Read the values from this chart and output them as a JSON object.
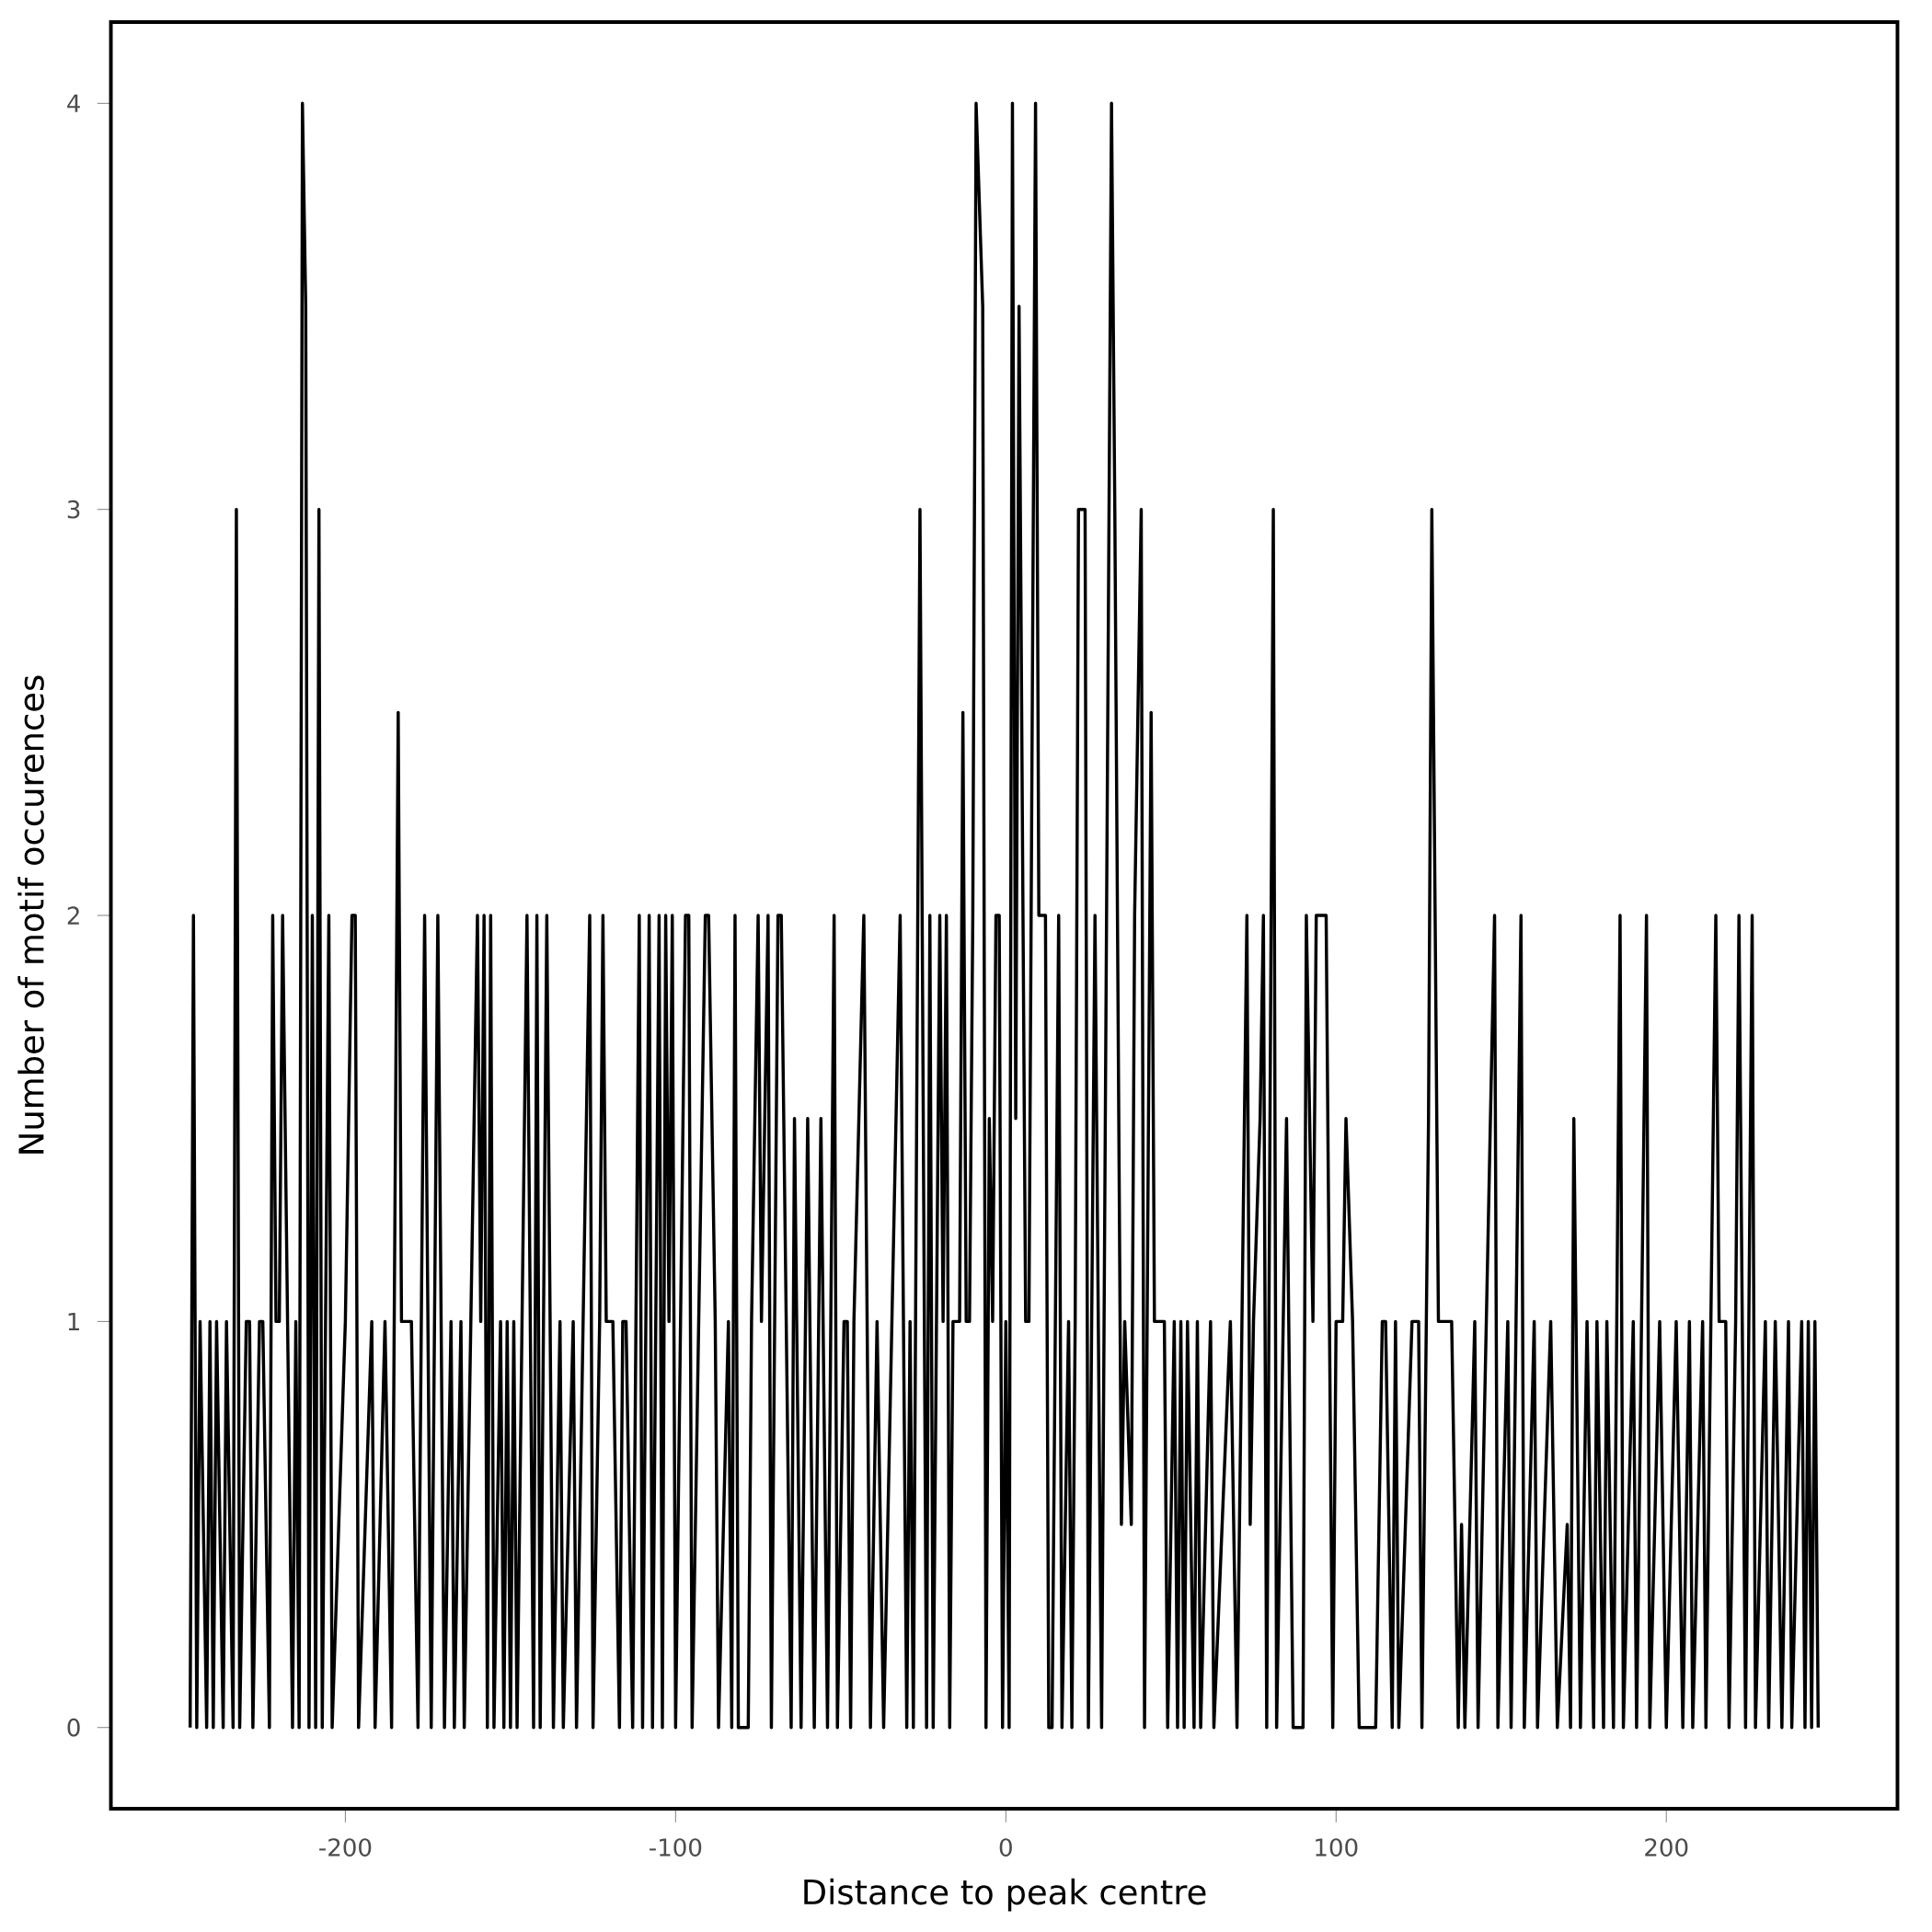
{
  "chart_data": {
    "type": "line",
    "xlabel": "Distance to peak centre",
    "ylabel": "Number of motif occurences",
    "color": "#000000",
    "xlim": [
      -271,
      270
    ],
    "ylim": [
      -0.2,
      4.2
    ],
    "xticks": [
      -200,
      -100,
      0,
      100,
      200
    ],
    "yticks": [
      0,
      1,
      2,
      3,
      4
    ],
    "x": [
      -247,
      -246,
      -245,
      -244,
      -242,
      -241,
      -240,
      -239,
      -237,
      -236,
      -234,
      -233,
      -232,
      -230,
      -229,
      -228,
      -226,
      -225,
      -223,
      -222,
      -221,
      -220,
      -219,
      -216,
      -215,
      -214,
      -213,
      -212,
      -211,
      -210,
      -209,
      -208,
      -207,
      -205,
      -204,
      -200,
      -198,
      -197,
      -196,
      -192,
      -191,
      -188,
      -186,
      -184,
      -183,
      -180,
      -178,
      -176,
      -174,
      -172,
      -170,
      -168,
      -167,
      -165,
      -164,
      -160,
      -159,
      -158,
      -157,
      -156,
      -155,
      -153,
      -152,
      -151,
      -150,
      -149,
      -148,
      -145,
      -143,
      -142,
      -141,
      -139,
      -137,
      -135,
      -134,
      -131,
      -130,
      -126,
      -125,
      -123,
      -122,
      -121,
      -119,
      -117,
      -116,
      -115,
      -113,
      -111,
      -110,
      -108,
      -107,
      -105,
      -104,
      -103,
      -102,
      -101,
      -100,
      -97,
      -96,
      -95,
      -91,
      -90,
      -88,
      -87,
      -84,
      -83,
      -82,
      -81,
      -78,
      -77,
      -75,
      -74,
      -72,
      -71,
      -69,
      -68,
      -65,
      -64,
      -62,
      -60,
      -58,
      -56,
      -54,
      -52,
      -51,
      -49,
      -48,
      -47,
      -46,
      -43,
      -41,
      -39,
      -37,
      -32,
      -30,
      -29,
      -28,
      -26,
      -24,
      -23,
      -22,
      -20,
      -19,
      -18,
      -17,
      -16,
      -14,
      -13,
      -12,
      -11,
      -10,
      -9,
      -7,
      -6,
      -5,
      -4,
      -3,
      -2,
      -1,
      0,
      1,
      2,
      3,
      4,
      6,
      7,
      9,
      10,
      12,
      13,
      14,
      16,
      17,
      19,
      20,
      21,
      22,
      24,
      25,
      27,
      29,
      32,
      33,
      35,
      36,
      38,
      39,
      41,
      42,
      44,
      45,
      48,
      49,
      51,
      52,
      53,
      54,
      55,
      57,
      58,
      59,
      62,
      63,
      68,
      70,
      73,
      74,
      75,
      77,
      78,
      79,
      81,
      82,
      85,
      87,
      90,
      91,
      93,
      94,
      97,
      99,
      100,
      102,
      103,
      105,
      107,
      112,
      114,
      115,
      117,
      118,
      119,
      123,
      125,
      126,
      128,
      129,
      131,
      135,
      137,
      138,
      139,
      142,
      143,
      148,
      149,
      152,
      153,
      156,
      157,
      160,
      161,
      165,
      167,
      170,
      171,
      172,
      174,
      176,
      178,
      179,
      181,
      182,
      184,
      186,
      187,
      190,
      191,
      194,
      195,
      198,
      200,
      203,
      205,
      207,
      208,
      211,
      212,
      215,
      216,
      218,
      219,
      221,
      222,
      224,
      226,
      227,
      230,
      231,
      233,
      235,
      237,
      238,
      241,
      242,
      243,
      244,
      245,
      246
    ],
    "values": [
      0,
      2,
      0,
      1,
      0,
      1,
      0,
      1,
      0,
      1,
      0,
      3,
      0,
      1,
      1,
      0,
      1,
      1,
      0,
      2,
      1,
      1,
      2,
      0,
      1,
      0,
      4,
      3.5,
      0,
      2,
      0,
      3,
      0,
      2,
      0,
      1,
      2,
      2,
      0,
      1,
      0,
      1,
      0,
      2.5,
      1,
      1,
      0,
      2,
      0,
      2,
      0,
      1,
      0,
      1,
      0,
      2,
      1,
      2,
      0,
      2,
      0,
      1,
      0,
      1,
      0,
      1,
      0,
      2,
      0,
      2,
      0,
      2,
      0,
      1,
      0,
      1,
      0,
      2,
      0,
      1,
      2,
      1,
      1,
      0,
      1,
      1,
      0,
      2,
      0,
      2,
      0,
      2,
      0,
      2,
      1,
      2,
      0,
      2,
      2,
      0,
      2,
      2,
      1,
      0,
      1,
      0,
      2,
      0,
      0,
      1,
      2,
      1,
      2,
      0,
      2,
      2,
      0,
      1.5,
      0,
      1.5,
      0,
      1.5,
      0,
      2,
      0,
      1,
      1,
      0,
      1,
      2,
      0,
      1,
      0,
      2,
      0,
      1,
      0,
      3,
      0,
      2,
      0,
      2,
      1,
      2,
      0,
      1,
      1,
      2.5,
      1,
      1,
      2,
      4,
      3.5,
      0,
      1.5,
      1,
      2,
      2,
      0,
      1,
      0,
      4,
      1.5,
      3.5,
      1,
      1,
      4,
      2,
      2,
      0,
      0,
      2,
      0,
      1,
      0,
      1,
      3,
      3,
      0,
      2,
      0,
      4,
      3,
      0.5,
      1,
      0.5,
      2,
      3,
      0,
      2.5,
      1,
      1,
      0,
      1,
      0,
      1,
      0,
      1,
      0,
      1,
      0,
      1,
      0,
      1,
      0,
      2,
      0.5,
      1,
      1.5,
      2,
      0,
      3,
      0,
      1.5,
      0,
      0,
      2,
      1,
      2,
      2,
      0,
      1,
      1,
      1.5,
      1,
      0,
      0,
      1,
      1,
      0,
      1,
      0,
      1,
      1,
      0,
      1.5,
      3,
      1,
      1,
      0,
      0.5,
      0,
      1,
      0,
      2,
      0,
      1,
      0,
      2,
      0,
      1,
      0,
      1,
      0,
      0.5,
      0,
      1.5,
      0,
      1,
      0,
      1,
      0,
      1,
      0,
      2,
      0,
      1,
      0,
      2,
      0,
      1,
      0,
      1,
      0,
      1,
      0,
      1,
      0,
      2,
      1,
      1,
      0,
      1,
      2,
      0,
      2,
      0,
      1,
      0,
      1,
      0,
      1,
      0,
      1,
      0,
      1,
      0,
      1,
      0
    ]
  }
}
